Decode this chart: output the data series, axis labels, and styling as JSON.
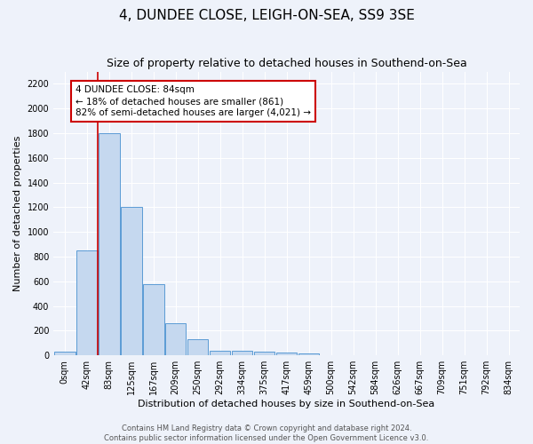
{
  "title": "4, DUNDEE CLOSE, LEIGH-ON-SEA, SS9 3SE",
  "subtitle": "Size of property relative to detached houses in Southend-on-Sea",
  "xlabel": "Distribution of detached houses by size in Southend-on-Sea",
  "ylabel": "Number of detached properties",
  "bin_labels": [
    "0sqm",
    "42sqm",
    "83sqm",
    "125sqm",
    "167sqm",
    "209sqm",
    "250sqm",
    "292sqm",
    "334sqm",
    "375sqm",
    "417sqm",
    "459sqm",
    "500sqm",
    "542sqm",
    "584sqm",
    "626sqm",
    "667sqm",
    "709sqm",
    "751sqm",
    "792sqm",
    "834sqm"
  ],
  "bar_heights": [
    30,
    850,
    1800,
    1200,
    580,
    260,
    130,
    40,
    40,
    30,
    20,
    15,
    0,
    0,
    0,
    0,
    0,
    0,
    0,
    0,
    0
  ],
  "bar_color": "#c5d8ef",
  "bar_edge_color": "#5b9bd5",
  "red_line_index": 2,
  "ylim": [
    0,
    2300
  ],
  "yticks": [
    0,
    200,
    400,
    600,
    800,
    1000,
    1200,
    1400,
    1600,
    1800,
    2000,
    2200
  ],
  "annotation_text": "4 DUNDEE CLOSE: 84sqm\n← 18% of detached houses are smaller (861)\n82% of semi-detached houses are larger (4,021) →",
  "footer_text": "Contains HM Land Registry data © Crown copyright and database right 2024.\nContains public sector information licensed under the Open Government Licence v3.0.",
  "title_fontsize": 11,
  "subtitle_fontsize": 9,
  "axis_label_fontsize": 8,
  "tick_fontsize": 7,
  "annotation_fontsize": 7.5,
  "footer_fontsize": 6,
  "background_color": "#eef2fa",
  "grid_color": "#ffffff",
  "annotation_box_color": "#ffffff",
  "annotation_box_edge": "#cc0000",
  "red_line_color": "#cc0000"
}
